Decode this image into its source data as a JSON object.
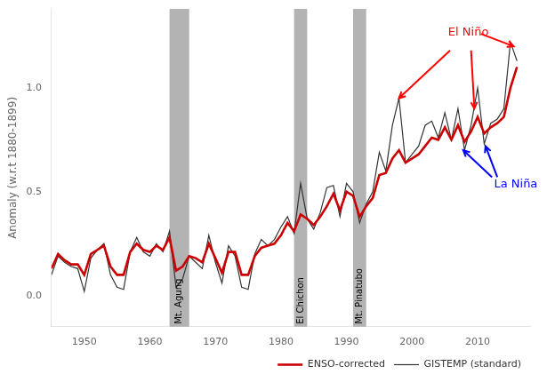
{
  "chart_data": {
    "type": "line",
    "ylabel": "Anomaly (w.r.t 1880-1899)",
    "x": [
      1945,
      1946,
      1947,
      1948,
      1949,
      1950,
      1951,
      1952,
      1953,
      1954,
      1955,
      1956,
      1957,
      1958,
      1959,
      1960,
      1961,
      1962,
      1963,
      1964,
      1965,
      1966,
      1967,
      1968,
      1969,
      1970,
      1971,
      1972,
      1973,
      1974,
      1975,
      1976,
      1977,
      1978,
      1979,
      1980,
      1981,
      1982,
      1983,
      1984,
      1985,
      1986,
      1987,
      1988,
      1989,
      1990,
      1991,
      1992,
      1993,
      1994,
      1995,
      1996,
      1997,
      1998,
      1999,
      2000,
      2001,
      2002,
      2003,
      2004,
      2005,
      2006,
      2007,
      2008,
      2009,
      2010,
      2011,
      2012,
      2013,
      2014,
      2015,
      2016
    ],
    "series": [
      {
        "name": "GISTEMP (standard)",
        "color": "#333333",
        "values": [
          0.1,
          0.19,
          0.16,
          0.14,
          0.13,
          0.02,
          0.18,
          0.22,
          0.25,
          0.1,
          0.04,
          0.03,
          0.21,
          0.28,
          0.21,
          0.19,
          0.25,
          0.21,
          0.31,
          0.04,
          0.08,
          0.19,
          0.16,
          0.13,
          0.29,
          0.16,
          0.06,
          0.24,
          0.19,
          0.04,
          0.03,
          0.2,
          0.27,
          0.24,
          0.27,
          0.33,
          0.38,
          0.3,
          0.54,
          0.37,
          0.32,
          0.4,
          0.52,
          0.53,
          0.38,
          0.54,
          0.5,
          0.35,
          0.44,
          0.5,
          0.69,
          0.6,
          0.82,
          0.95,
          0.64,
          0.68,
          0.72,
          0.82,
          0.84,
          0.76,
          0.88,
          0.75,
          0.9,
          0.7,
          0.82,
          1.0,
          0.73,
          0.83,
          0.85,
          0.9,
          1.22,
          1.13
        ]
      },
      {
        "name": "ENSO-corrected",
        "color": "#cc0000",
        "values": [
          0.13,
          0.2,
          0.17,
          0.15,
          0.15,
          0.1,
          0.2,
          0.22,
          0.24,
          0.14,
          0.1,
          0.1,
          0.21,
          0.25,
          0.22,
          0.21,
          0.24,
          0.22,
          0.28,
          0.12,
          0.14,
          0.19,
          0.18,
          0.16,
          0.25,
          0.18,
          0.11,
          0.21,
          0.21,
          0.1,
          0.1,
          0.19,
          0.23,
          0.24,
          0.25,
          0.29,
          0.35,
          0.31,
          0.39,
          0.37,
          0.34,
          0.38,
          0.43,
          0.49,
          0.41,
          0.5,
          0.48,
          0.38,
          0.43,
          0.47,
          0.58,
          0.59,
          0.66,
          0.7,
          0.64,
          0.66,
          0.68,
          0.72,
          0.76,
          0.75,
          0.81,
          0.75,
          0.82,
          0.74,
          0.79,
          0.86,
          0.78,
          0.81,
          0.83,
          0.86,
          1.0,
          1.1
        ]
      }
    ],
    "xlim": [
      1945,
      2018
    ],
    "ylim": [
      -0.15,
      1.38
    ],
    "xticks": [
      1950,
      1960,
      1970,
      1980,
      1990,
      2000,
      2010
    ],
    "yticks": [
      {
        "value": 0,
        "label": "0.0"
      },
      0.5,
      {
        "value": 1,
        "label": "1.0"
      }
    ],
    "grid": false,
    "legend": "lower right",
    "volcano_bands": [
      {
        "x0": 1963,
        "x1": 1966,
        "label": "Mt. Agung",
        "color": "#b3b3b3"
      },
      {
        "x0": 1982,
        "x1": 1984,
        "label": "El Chichon",
        "color": "#b3b3b3"
      },
      {
        "x0": 1991,
        "x1": 1993,
        "label": "Mt. Pinatubo",
        "color": "#b3b3b3"
      }
    ],
    "annotations": [
      {
        "text": "El Niño",
        "color": "red",
        "x": 2005.5,
        "y": 1.25,
        "arrows": [
          {
            "from": [
              2010.5,
              1.26
            ],
            "to": [
              2015.5,
              1.2
            ]
          },
          {
            "from": [
              2009.0,
              1.18
            ],
            "to": [
              2009.5,
              0.9
            ]
          },
          {
            "from": [
              2005.8,
              1.18
            ],
            "to": [
              1998.0,
              0.95
            ]
          }
        ]
      },
      {
        "text": "La Niña",
        "color": "blue",
        "x": 2012.5,
        "y": 0.52,
        "arrows": [
          {
            "from": [
              2012.2,
              0.57
            ],
            "to": [
              2007.8,
              0.7
            ]
          },
          {
            "from": [
              2013.0,
              0.57
            ],
            "to": [
              2011.2,
              0.72
            ]
          }
        ]
      }
    ]
  }
}
